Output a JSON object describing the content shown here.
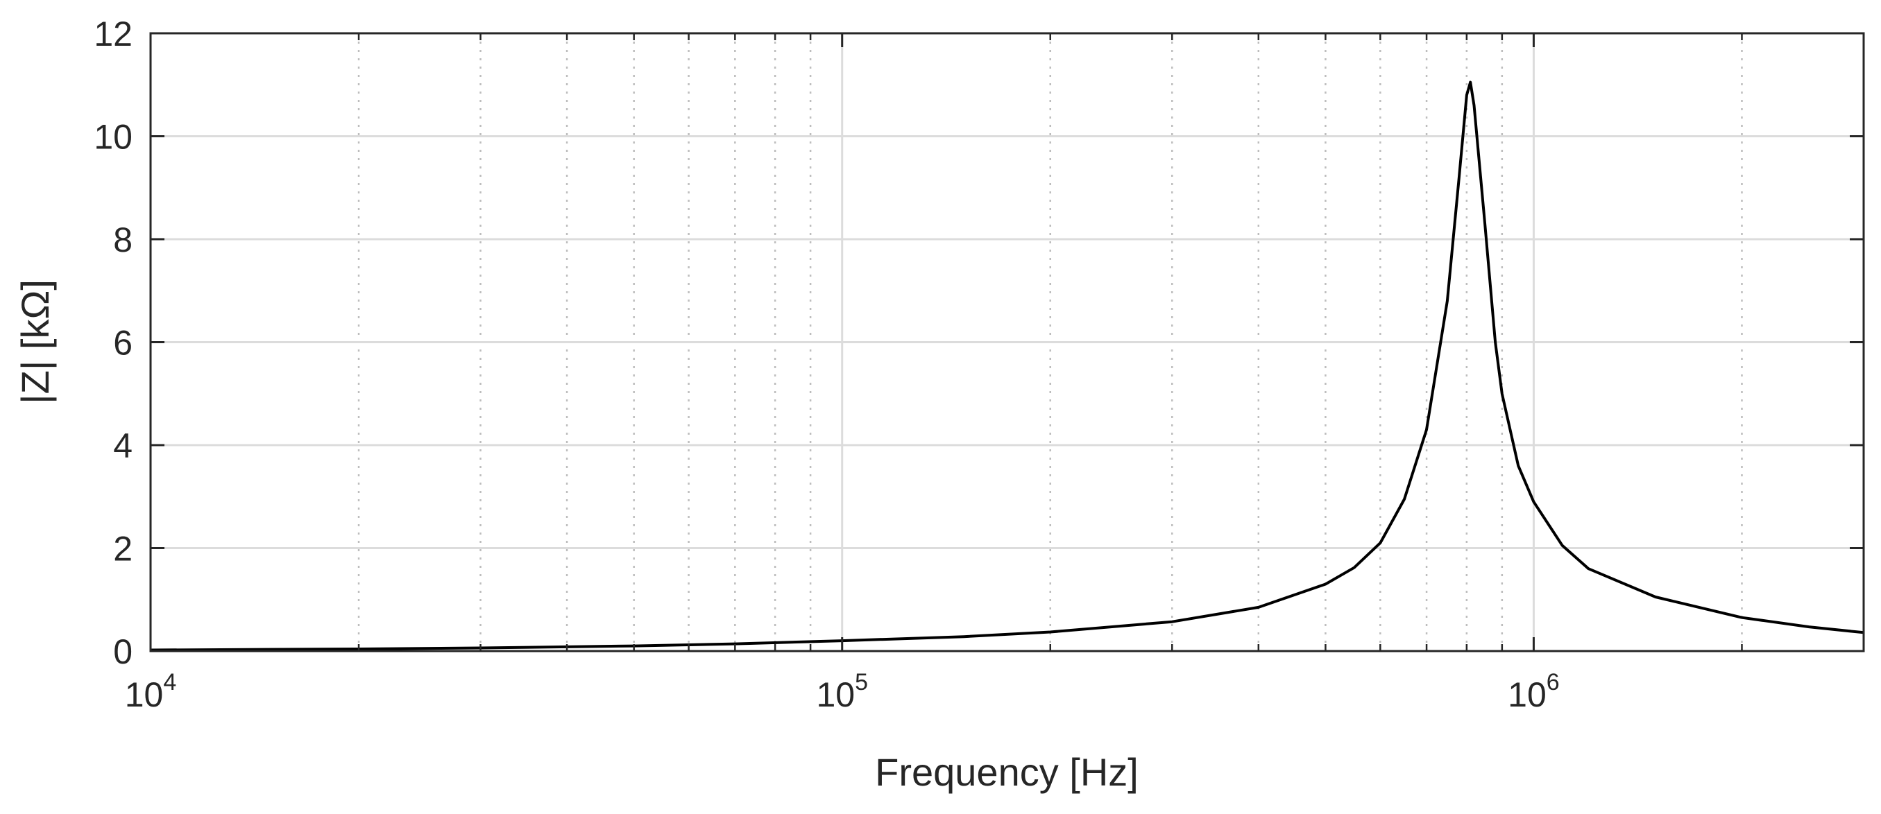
{
  "chart_data": {
    "type": "line",
    "xlabel": "Frequency [Hz]",
    "ylabel": "|Z| [kΩ]",
    "x_scale": "log",
    "xlim": [
      10000,
      3000000
    ],
    "ylim": [
      0,
      12
    ],
    "grid": true,
    "x_ticks": [
      {
        "value": 10000,
        "base": "10",
        "exp": "4"
      },
      {
        "value": 100000,
        "base": "10",
        "exp": "5"
      },
      {
        "value": 1000000,
        "base": "10",
        "exp": "6"
      }
    ],
    "y_ticks": [
      {
        "value": 0,
        "label": "0"
      },
      {
        "value": 2,
        "label": "2"
      },
      {
        "value": 4,
        "label": "4"
      },
      {
        "value": 6,
        "label": "6"
      },
      {
        "value": 8,
        "label": "8"
      },
      {
        "value": 10,
        "label": "10"
      },
      {
        "value": 12,
        "label": "12"
      }
    ],
    "series": [
      {
        "color": "#000000",
        "x": [
          10000,
          20000,
          30000,
          50000,
          70000,
          100000,
          150000,
          200000,
          300000,
          400000,
          500000,
          550000,
          600000,
          650000,
          700000,
          750000,
          780000,
          800000,
          810000,
          820000,
          850000,
          880000,
          900000,
          950000,
          1000000,
          1100000,
          1200000,
          1500000,
          2000000,
          2500000,
          3000000
        ],
        "y": [
          0.02,
          0.04,
          0.06,
          0.1,
          0.14,
          0.2,
          0.28,
          0.37,
          0.57,
          0.85,
          1.3,
          1.62,
          2.1,
          2.95,
          4.3,
          6.8,
          9.2,
          10.8,
          11.05,
          10.6,
          8.3,
          6.0,
          5.0,
          3.6,
          2.9,
          2.05,
          1.6,
          1.05,
          0.65,
          0.47,
          0.36
        ]
      }
    ]
  }
}
